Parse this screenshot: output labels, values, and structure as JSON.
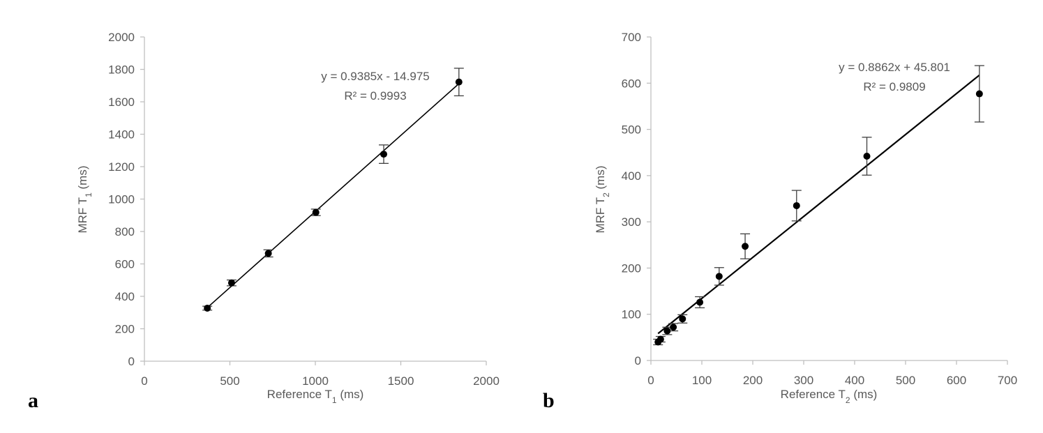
{
  "colors": {
    "axis": "#bfbfbf",
    "text": "#595959",
    "marker": "#000000",
    "trendline": "#000000",
    "errorbar": "#404040"
  },
  "panels": [
    {
      "label": "a",
      "xlabel_main": "Reference T",
      "xlabel_sub": "1",
      "xlabel_unit": " (ms)",
      "ylabel_main": "MRF T",
      "ylabel_sub": "1",
      "ylabel_unit": " (ms)",
      "equation": "y = 0.9385x - 14.975",
      "r2": "R² = 0.9993"
    },
    {
      "label": "b",
      "xlabel_main": "Reference T",
      "xlabel_sub": "2",
      "xlabel_unit": " (ms)",
      "ylabel_main": "MRF T",
      "ylabel_sub": "2",
      "ylabel_unit": " (ms)",
      "equation": "y = 0.8862x + 45.801",
      "r2": "R² = 0.9809"
    }
  ],
  "chart_data": [
    {
      "type": "scatter",
      "xlim": [
        0,
        2000
      ],
      "ylim": [
        0,
        2000
      ],
      "xticks": [
        0,
        500,
        1000,
        1500,
        2000
      ],
      "yticks": [
        0,
        200,
        400,
        600,
        800,
        1000,
        1200,
        1400,
        1600,
        1800,
        2000
      ],
      "grid": false,
      "points": [
        {
          "x": 368,
          "y": 327,
          "err": 12
        },
        {
          "x": 510,
          "y": 483,
          "err": 18
        },
        {
          "x": 725,
          "y": 665,
          "err": 22
        },
        {
          "x": 1003,
          "y": 918,
          "err": 20
        },
        {
          "x": 1400,
          "y": 1277,
          "err": 57
        },
        {
          "x": 1840,
          "y": 1722,
          "err": 85
        }
      ],
      "trendline": {
        "slope": 0.9385,
        "intercept": -14.975,
        "x_range": [
          368,
          1840
        ]
      }
    },
    {
      "type": "scatter",
      "xlim": [
        0,
        700
      ],
      "ylim": [
        0,
        700
      ],
      "xticks": [
        0,
        100,
        200,
        300,
        400,
        500,
        600,
        700
      ],
      "yticks": [
        0,
        100,
        200,
        300,
        400,
        500,
        600,
        700
      ],
      "grid": false,
      "points": [
        {
          "x": 14,
          "y": 40,
          "err": 6
        },
        {
          "x": 19,
          "y": 46,
          "err": 6
        },
        {
          "x": 32,
          "y": 64,
          "err": 8
        },
        {
          "x": 44,
          "y": 72,
          "err": 8
        },
        {
          "x": 62,
          "y": 90,
          "err": 9
        },
        {
          "x": 96,
          "y": 126,
          "err": 12
        },
        {
          "x": 134,
          "y": 182,
          "err": 19
        },
        {
          "x": 185,
          "y": 247,
          "err": 27
        },
        {
          "x": 286,
          "y": 335,
          "err": 33
        },
        {
          "x": 424,
          "y": 442,
          "err": 41
        },
        {
          "x": 645,
          "y": 577,
          "err": 61
        }
      ],
      "trendline": {
        "slope": 0.8862,
        "intercept": 45.801,
        "x_range": [
          14,
          645
        ]
      }
    }
  ]
}
